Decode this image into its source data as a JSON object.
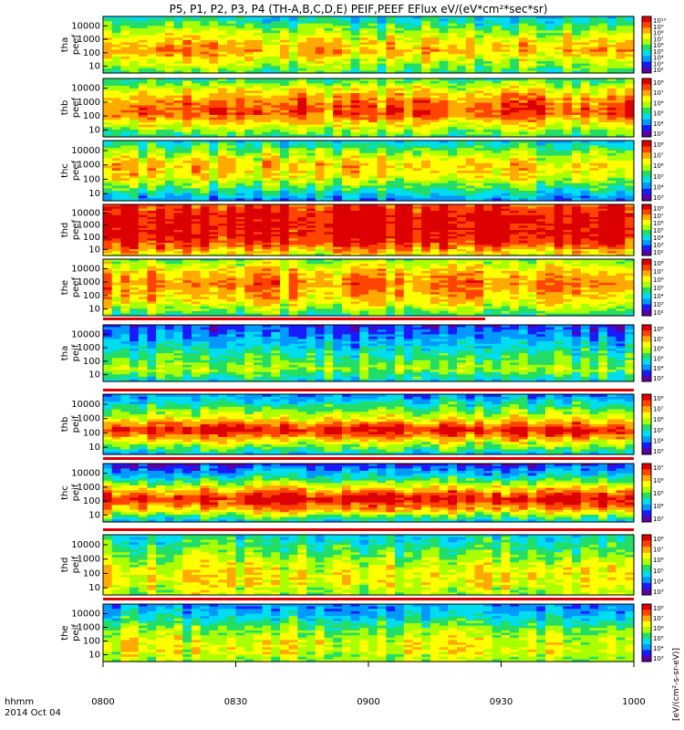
{
  "chart_data": {
    "type": "heatmap",
    "title": "P5, P1, P2, P3, P4 (TH-A,B,C,D,E) PEIF,PEEF EFlux eV/(eV*cm²*sec*sr)",
    "x_axis": {
      "ticks": [
        "0800",
        "0830",
        "0900",
        "0930",
        "1000"
      ],
      "range": [
        "0800",
        "1000"
      ],
      "unit_label": "hhmm",
      "date": "2014 Oct 04"
    },
    "y_scale": "log",
    "y_ticks": [
      "10",
      "100",
      "1000",
      "10000"
    ],
    "colorbar_label": "[eV/(cm²-s-sr-eV)]",
    "panels": [
      {
        "id": "tha_peef",
        "label": [
          "tha",
          "peef"
        ],
        "color_ticks": [
          "10¹⁰",
          "10⁹",
          "10⁸",
          "10⁷",
          "10⁶",
          "10⁵",
          "10⁴",
          "10³",
          "10²"
        ],
        "color_range": [
          "1e2",
          "1e10"
        ]
      },
      {
        "id": "thb_peef",
        "label": [
          "thb",
          "peef"
        ],
        "color_ticks": [
          "10⁸",
          "10⁷",
          "10⁶",
          "10⁵",
          "10⁴",
          "10³"
        ],
        "color_range": [
          "1e3",
          "1e9"
        ]
      },
      {
        "id": "thc_peef",
        "label": [
          "thc",
          "peef"
        ],
        "color_ticks": [
          "10⁸",
          "10⁷",
          "10⁶",
          "10⁵",
          "10⁴",
          "10³"
        ],
        "color_range": [
          "1e3",
          "1e9"
        ]
      },
      {
        "id": "thd_peef",
        "label": [
          "thd",
          "peef"
        ],
        "color_ticks": [
          "10⁸",
          "10⁷",
          "10⁶",
          "10⁵",
          "10⁴",
          "10³",
          "10²"
        ],
        "color_range": [
          "1e2",
          "1e9"
        ]
      },
      {
        "id": "the_peef",
        "label": [
          "the",
          "peef"
        ],
        "color_ticks": [
          "10⁸",
          "10⁷",
          "10⁶",
          "10⁵",
          "10⁴",
          "10³",
          "10²"
        ],
        "color_range": [
          "1e2",
          "1e9"
        ]
      },
      {
        "id": "tha_peif",
        "label": [
          "tha",
          "peif"
        ],
        "color_ticks": [
          "10⁸",
          "10⁷",
          "10⁶",
          "10⁵",
          "10⁴",
          "10³"
        ],
        "color_range": [
          "1e3",
          "1e8"
        ]
      },
      {
        "id": "thb_peif",
        "label": [
          "thb",
          "peif"
        ],
        "color_ticks": [
          "10⁸",
          "10⁷",
          "10⁶",
          "10⁵",
          "10⁴",
          "10³"
        ],
        "color_range": [
          "1e3",
          "1e8"
        ]
      },
      {
        "id": "thc_peif",
        "label": [
          "thc",
          "peif"
        ],
        "color_ticks": [
          "10⁷",
          "10⁶",
          "10⁵",
          "10⁴",
          "10³"
        ],
        "color_range": [
          "1e3",
          "1e7"
        ]
      },
      {
        "id": "thd_peif",
        "label": [
          "thd",
          "peif"
        ],
        "color_ticks": [
          "10⁸",
          "10⁷",
          "10⁶",
          "10⁵",
          "10⁴",
          "10³"
        ],
        "color_range": [
          "1e3",
          "1e8"
        ]
      },
      {
        "id": "the_peif",
        "label": [
          "the",
          "peif"
        ],
        "color_ticks": [
          "10⁸",
          "10⁷",
          "10⁶",
          "10⁵",
          "10⁴",
          "10³"
        ],
        "color_range": [
          "1e3",
          "1e8"
        ]
      }
    ],
    "colorscale": [
      "#5a00a0",
      "#1a1aff",
      "#0099ff",
      "#00ddee",
      "#22dd66",
      "#aaff00",
      "#ffff00",
      "#ffaa00",
      "#ff4400",
      "#dd0000"
    ]
  }
}
